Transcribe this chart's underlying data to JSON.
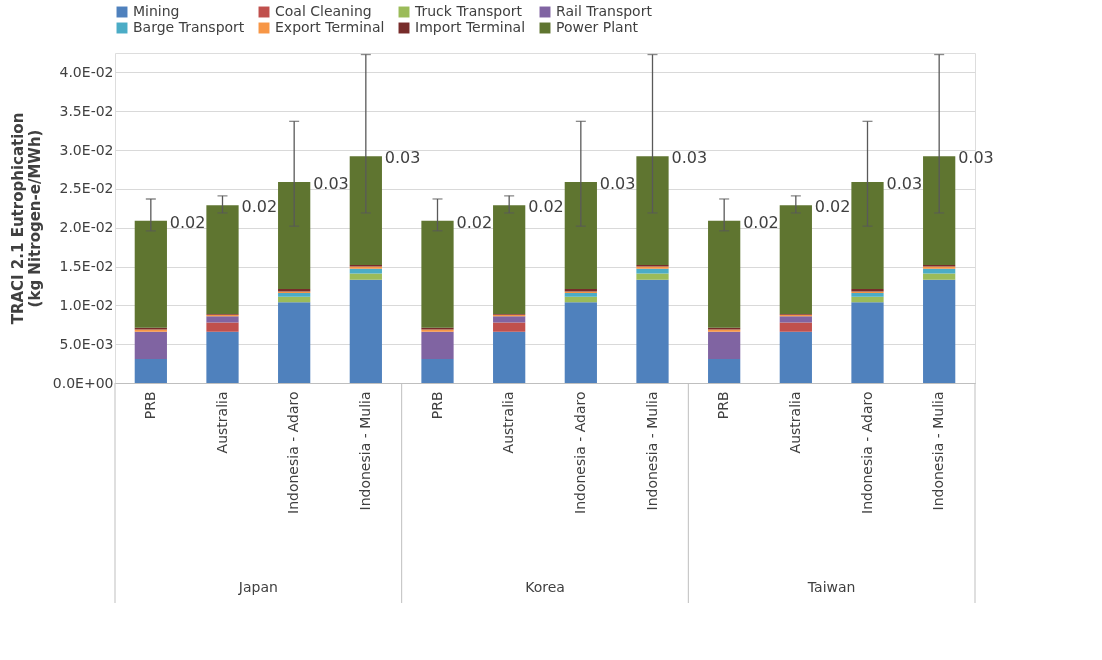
{
  "chart_data": {
    "type": "bar",
    "stacked": true,
    "ylabel": "TRACI 2.1 Eutrophication\n(kg Nitrogen-e/MWh)",
    "categories": [
      "PRB",
      "Australia",
      "Indonesia - Adaro",
      "Indonesia - Mulia",
      "PRB",
      "Australia",
      "Indonesia - Adaro",
      "Indonesia - Mulia",
      "PRB",
      "Australia",
      "Indonesia - Adaro",
      "Indonesia - Mulia"
    ],
    "series": [
      {
        "name": "Mining",
        "color": "#4f81bd",
        "values": [
          0.0031,
          0.0066,
          0.0104,
          0.0133,
          0.0031,
          0.0066,
          0.0104,
          0.0133,
          0.0031,
          0.0066,
          0.0104,
          0.0133
        ]
      },
      {
        "name": "Coal Cleaning",
        "color": "#c0504d",
        "values": [
          0,
          0.0012,
          0,
          0,
          0,
          0.0012,
          0,
          0,
          0,
          0.0012,
          0,
          0
        ]
      },
      {
        "name": "Truck Transport",
        "color": "#9bbb59",
        "values": [
          0,
          0,
          0.0007,
          0.0008,
          0,
          0,
          0.0007,
          0.0008,
          0,
          0,
          0.0007,
          0.0008
        ]
      },
      {
        "name": "Rail Transport",
        "color": "#8064a2",
        "values": [
          0.0035,
          0.0008,
          0,
          0,
          0.0035,
          0.0008,
          0,
          0,
          0.0035,
          0.0008,
          0,
          0
        ]
      },
      {
        "name": "Barge Transport",
        "color": "#4bacc6",
        "values": [
          0,
          0,
          0.0005,
          0.0006,
          0,
          0,
          0.0005,
          0.0006,
          0,
          0,
          0.0005,
          0.0006
        ]
      },
      {
        "name": "Export Terminal",
        "color": "#f79646",
        "values": [
          0.0003,
          0.0002,
          0.0002,
          0.0003,
          0.0003,
          0.0002,
          0.0002,
          0.0003,
          0.0003,
          0.0002,
          0.0002,
          0.0003
        ]
      },
      {
        "name": "Import Terminal",
        "color": "#772c2a",
        "values": [
          0.0002,
          0.0001,
          0.0003,
          0.0002,
          0.0002,
          0.0001,
          0.0003,
          0.0002,
          0.0002,
          0.0001,
          0.0003,
          0.0002
        ]
      },
      {
        "name": "Power Plant",
        "color": "#5f7530",
        "values": [
          0.0138,
          0.014,
          0.0138,
          0.014,
          0.0138,
          0.014,
          0.0138,
          0.014,
          0.0138,
          0.014,
          0.0138,
          0.014
        ],
        "errors": [
          [
            0.0196,
            0.0237
          ],
          [
            0.0219,
            0.0241
          ],
          [
            0.0202,
            0.0337
          ],
          [
            0.0219,
            0.0423
          ],
          [
            0.0196,
            0.0237
          ],
          [
            0.0219,
            0.0241
          ],
          [
            0.0202,
            0.0337
          ],
          [
            0.0219,
            0.0423
          ],
          [
            0.0196,
            0.0237
          ],
          [
            0.0219,
            0.0241
          ],
          [
            0.0202,
            0.0337
          ],
          [
            0.0219,
            0.0423
          ]
        ]
      }
    ],
    "totals": [
      "0.02",
      "0.02",
      "0.03",
      "0.03",
      "0.02",
      "0.02",
      "0.03",
      "0.03",
      "0.02",
      "0.02",
      "0.03",
      "0.03"
    ],
    "annotations": [
      "Japan",
      "Korea",
      "Taiwan"
    ],
    "ylim": [
      0,
      0.0425
    ],
    "yticks": [
      {
        "value": 0,
        "label": "0.0E+00"
      },
      {
        "value": 0.005,
        "label": "5.0E-03"
      },
      {
        "value": 0.01,
        "label": "1.0E-02"
      },
      {
        "value": 0.015,
        "label": "1.5E-02"
      },
      {
        "value": 0.02,
        "label": "2.0E-02"
      },
      {
        "value": 0.025,
        "label": "2.5E-02"
      },
      {
        "value": 0.03,
        "label": "3.0E-02"
      },
      {
        "value": 0.035,
        "label": "3.5E-02"
      },
      {
        "value": 0.04,
        "label": "4.0E-02"
      }
    ],
    "grid": "y",
    "legend": "top"
  }
}
